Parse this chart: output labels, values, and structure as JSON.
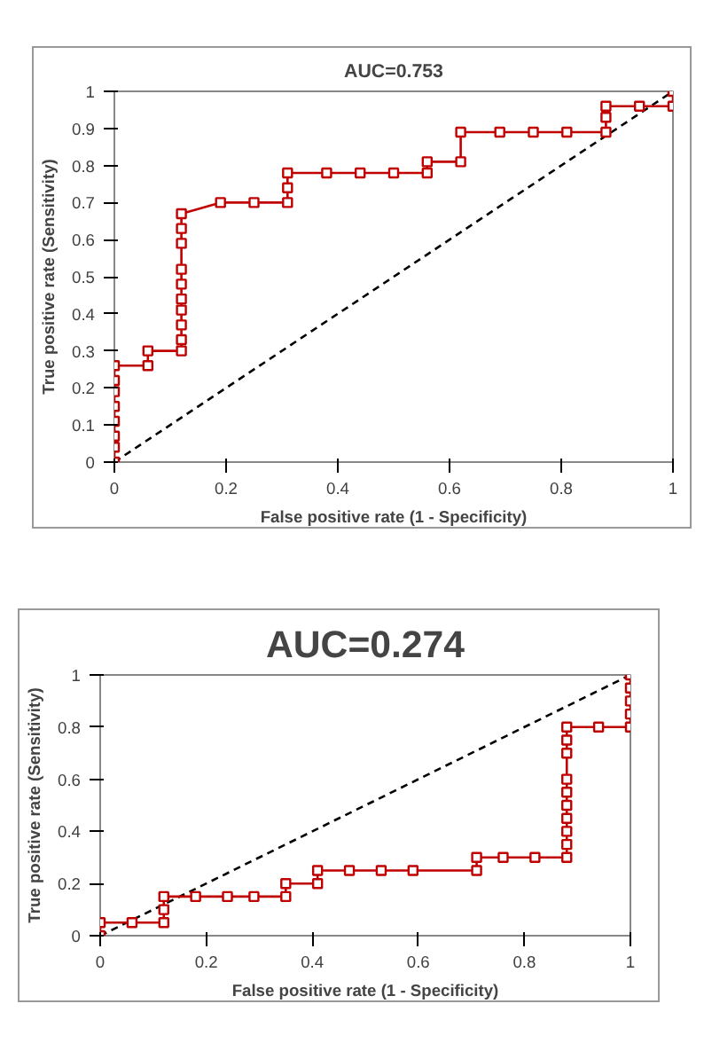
{
  "chart_data": [
    {
      "type": "line",
      "title": "AUC=0.753",
      "xlabel": "False positive rate (1 - Specificity)",
      "ylabel": "True positive rate (Sensitivity)",
      "xlim": [
        0,
        1
      ],
      "ylim": [
        0,
        1
      ],
      "xticks": [
        0,
        0.2,
        0.4,
        0.6,
        0.8,
        1
      ],
      "yticks": [
        0,
        0.1,
        0.2,
        0.3,
        0.4,
        0.5,
        0.6,
        0.7,
        0.8,
        0.9,
        1
      ],
      "grid": false,
      "marker": "square",
      "line_style": "solid",
      "series": [
        {
          "color": "#c00000",
          "x": [
            0,
            0,
            0,
            0,
            0,
            0,
            0,
            0,
            0.06,
            0.06,
            0.12,
            0.12,
            0.12,
            0.12,
            0.12,
            0.12,
            0.12,
            0.12,
            0.12,
            0.12,
            0.19,
            0.25,
            0.31,
            0.31,
            0.31,
            0.38,
            0.44,
            0.5,
            0.56,
            0.56,
            0.62,
            0.62,
            0.69,
            0.75,
            0.81,
            0.88,
            0.88,
            0.88,
            0.94,
            1,
            1
          ],
          "values": [
            0,
            0.04,
            0.07,
            0.11,
            0.15,
            0.19,
            0.22,
            0.26,
            0.26,
            0.3,
            0.3,
            0.33,
            0.37,
            0.41,
            0.44,
            0.48,
            0.52,
            0.59,
            0.63,
            0.67,
            0.7,
            0.7,
            0.7,
            0.74,
            0.78,
            0.78,
            0.78,
            0.78,
            0.78,
            0.81,
            0.81,
            0.89,
            0.89,
            0.89,
            0.89,
            0.89,
            0.93,
            0.96,
            0.96,
            0.96,
            1
          ]
        },
        {
          "color": "#000000",
          "marker": "none",
          "line_style": "dashed",
          "x": [
            0,
            1
          ],
          "values": [
            0,
            1
          ]
        }
      ]
    },
    {
      "type": "line",
      "title": "AUC=0.274",
      "xlabel": "False positive rate (1 - Specificity)",
      "ylabel": "True positive rate (Sensitivity)",
      "xlim": [
        0,
        1
      ],
      "ylim": [
        0,
        1
      ],
      "xticks": [
        0,
        0.2,
        0.4,
        0.6,
        0.8,
        1
      ],
      "yticks": [
        0,
        0.2,
        0.4,
        0.6,
        0.8,
        1
      ],
      "grid": false,
      "marker": "square",
      "line_style": "solid",
      "series": [
        {
          "color": "#c00000",
          "x": [
            0,
            0,
            0.06,
            0.12,
            0.12,
            0.12,
            0.18,
            0.24,
            0.29,
            0.35,
            0.35,
            0.41,
            0.41,
            0.47,
            0.53,
            0.59,
            0.71,
            0.71,
            0.76,
            0.82,
            0.88,
            0.88,
            0.88,
            0.88,
            0.88,
            0.88,
            0.88,
            0.88,
            0.88,
            0.88,
            0.94,
            1,
            1,
            1,
            1,
            1
          ],
          "values": [
            0,
            0.05,
            0.05,
            0.05,
            0.1,
            0.15,
            0.15,
            0.15,
            0.15,
            0.15,
            0.2,
            0.2,
            0.25,
            0.25,
            0.25,
            0.25,
            0.25,
            0.3,
            0.3,
            0.3,
            0.3,
            0.35,
            0.4,
            0.45,
            0.5,
            0.55,
            0.6,
            0.7,
            0.75,
            0.8,
            0.8,
            0.8,
            0.85,
            0.9,
            0.95,
            1
          ]
        },
        {
          "color": "#000000",
          "marker": "none",
          "line_style": "dashed",
          "x": [
            0,
            1
          ],
          "values": [
            0,
            1
          ]
        }
      ]
    }
  ]
}
